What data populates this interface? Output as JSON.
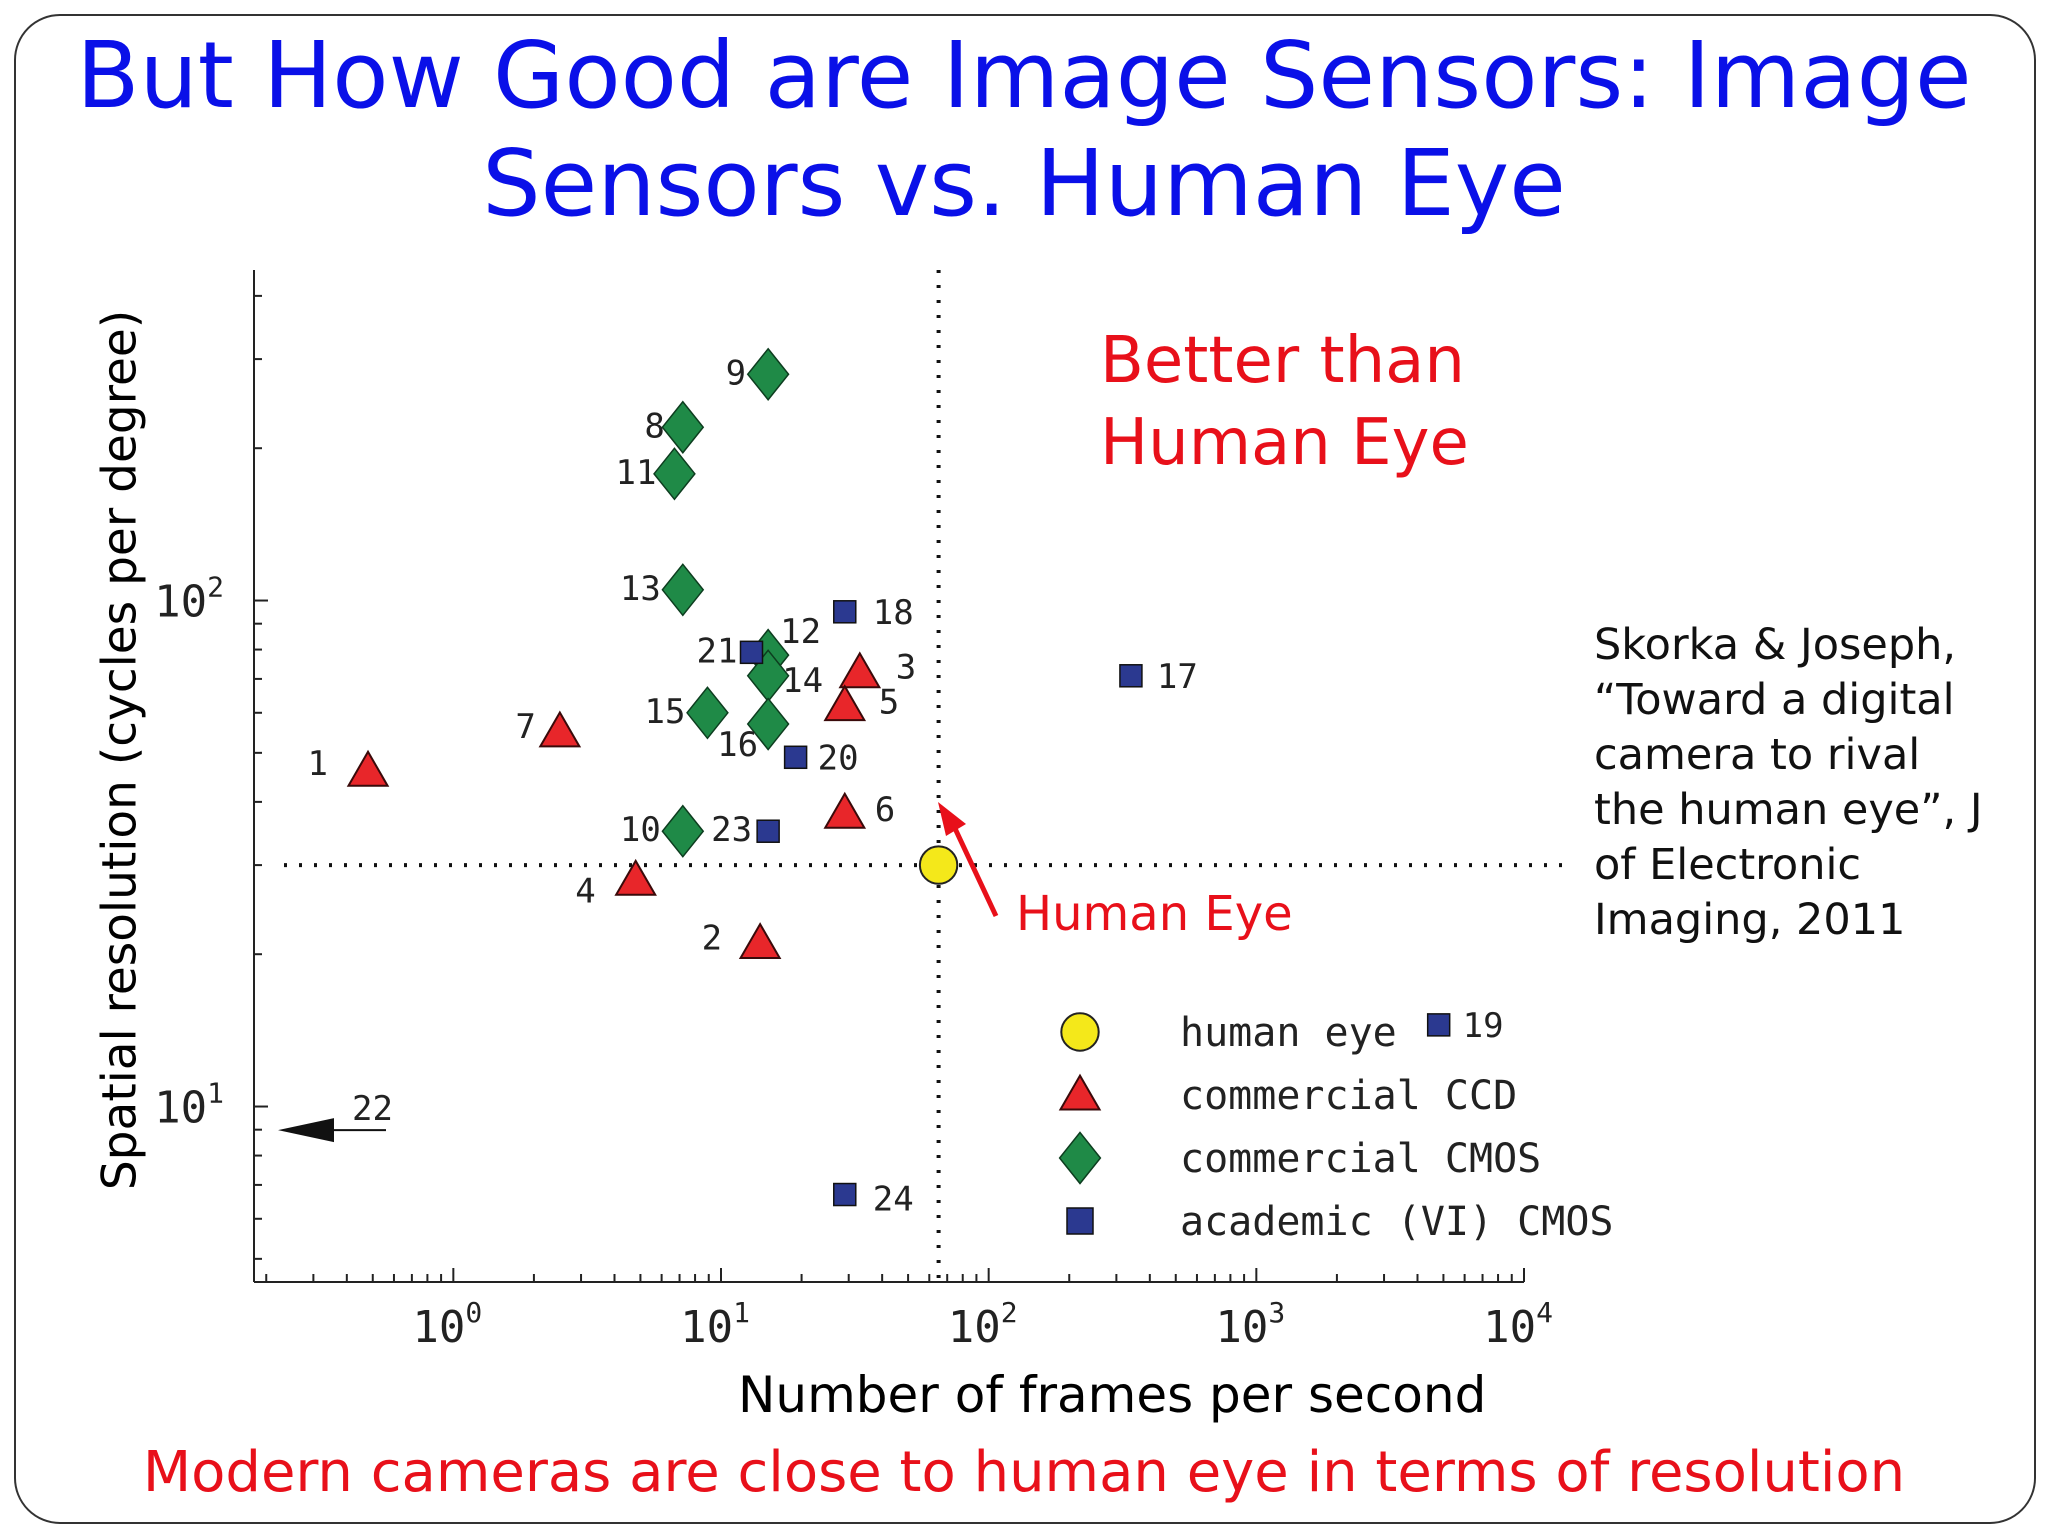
{
  "slide": {
    "title": "But How Good are Image Sensors: Image Sensors vs. Human Eye",
    "bottom_note": "Modern cameras are close to human eye in terms of resolution",
    "citation_lines": [
      "Skorka & Joseph,",
      "“Toward a digital",
      "camera to rival",
      "the human eye”, J",
      "of Electronic",
      "Imaging, 2011"
    ]
  },
  "chart_data": {
    "type": "scatter",
    "xlabel": "Number of frames per second",
    "ylabel": "Spatial resolution (cycles per degree)",
    "x_scale": "log",
    "y_scale": "log",
    "xlim": [
      0.18,
      10000
    ],
    "ylim": [
      4.5,
      450
    ],
    "x_ticks": [
      {
        "base": "10",
        "exp": "0",
        "value": 1
      },
      {
        "base": "10",
        "exp": "1",
        "value": 10
      },
      {
        "base": "10",
        "exp": "2",
        "value": 100
      },
      {
        "base": "10",
        "exp": "3",
        "value": 1000
      },
      {
        "base": "10",
        "exp": "4",
        "value": 10000
      }
    ],
    "y_ticks": [
      {
        "base": "10",
        "exp": "1",
        "value": 10
      },
      {
        "base": "10",
        "exp": "2",
        "value": 100
      }
    ],
    "reference": {
      "x": 65,
      "y": 30
    },
    "annotations": {
      "better": [
        "Better than",
        "Human Eye"
      ],
      "eye": "Human Eye"
    },
    "colors": {
      "human_eye": "#f4e81a",
      "ccd": "#e8262a",
      "cmos": "#1f8a47",
      "academic": "#2b3990",
      "annotation": "#e8101a"
    },
    "legend": {
      "position": "bottom-right",
      "entries": [
        {
          "label": "human eye",
          "marker": "circle"
        },
        {
          "label": "commercial CCD",
          "marker": "triangle"
        },
        {
          "label": "commercial CMOS",
          "marker": "diamond"
        },
        {
          "label": "academic (VI) CMOS",
          "marker": "square"
        }
      ]
    },
    "series": [
      {
        "name": "human eye",
        "marker": "circle",
        "points": [
          {
            "label": "",
            "x": 65,
            "y": 30
          }
        ]
      },
      {
        "name": "commercial CCD",
        "marker": "triangle",
        "points": [
          {
            "label": "1",
            "x": 0.48,
            "y": 46
          },
          {
            "label": "2",
            "x": 14,
            "y": 21
          },
          {
            "label": "3",
            "x": 33,
            "y": 72
          },
          {
            "label": "4",
            "x": 4.8,
            "y": 28
          },
          {
            "label": "5",
            "x": 29,
            "y": 62
          },
          {
            "label": "6",
            "x": 29,
            "y": 38
          },
          {
            "label": "7",
            "x": 2.5,
            "y": 55
          }
        ]
      },
      {
        "name": "commercial CMOS",
        "marker": "diamond",
        "points": [
          {
            "label": "8",
            "x": 7.2,
            "y": 220
          },
          {
            "label": "9",
            "x": 15,
            "y": 280
          },
          {
            "label": "10",
            "x": 7.2,
            "y": 35
          },
          {
            "label": "11",
            "x": 6.7,
            "y": 178
          },
          {
            "label": "12",
            "x": 15,
            "y": 78
          },
          {
            "label": "13",
            "x": 7.2,
            "y": 105
          },
          {
            "label": "14",
            "x": 15,
            "y": 71
          },
          {
            "label": "15",
            "x": 8.9,
            "y": 60
          },
          {
            "label": "16",
            "x": 15,
            "y": 57
          }
        ]
      },
      {
        "name": "academic (VI) CMOS",
        "marker": "square",
        "points": [
          {
            "label": "17",
            "x": 340,
            "y": 71
          },
          {
            "label": "18",
            "x": 29,
            "y": 95
          },
          {
            "label": "19",
            "x": 4800,
            "y": 14.5
          },
          {
            "label": "20",
            "x": 19,
            "y": 49
          },
          {
            "label": "21",
            "x": 13,
            "y": 79
          },
          {
            "label": "23",
            "x": 15,
            "y": 35
          },
          {
            "label": "24",
            "x": 29,
            "y": 6.7
          }
        ]
      }
    ],
    "offscale_point": {
      "label": "22",
      "y": 8.9
    }
  }
}
